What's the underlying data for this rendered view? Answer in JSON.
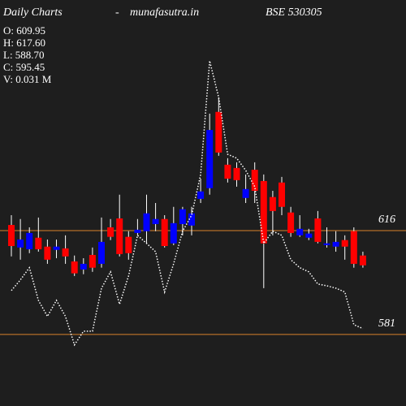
{
  "chart_data": {
    "type": "candlestick",
    "title": "Daily Charts",
    "separator": "-",
    "site": "munafasutra.in",
    "symbol": "BSE 530305",
    "info": [
      "O: 609.95",
      "H: 617.60",
      "L: 588.70",
      "C: 595.45",
      "V: 0.031 M"
    ],
    "ylim": [
      556.9,
      693.7
    ],
    "yticks": [
      581,
      616
    ],
    "tick_color": "#d9822b",
    "up_color": "#0000ff",
    "down_color": "#ff0000",
    "wick_color": "#ffffff",
    "open": [
      617.9,
      610.3,
      609.7,
      613.6,
      610.6,
      609.5,
      610.0,
      605.6,
      602.9,
      607.8,
      604.8,
      617.1,
      620.1,
      613.9,
      615.2,
      615.8,
      618.2,
      619.9,
      611.7,
      618.2,
      617.7,
      626.7,
      630.3,
      656.0,
      638.2,
      637.1,
      627.0,
      636.5,
      632.7,
      627.3,
      632.2,
      622.1,
      614.4,
      613.6,
      620.1,
      611.1,
      610.6,
      612.8,
      615.8,
      607.6
    ],
    "high": [
      621.2,
      619.9,
      617.1,
      620.4,
      613.0,
      613.0,
      614.4,
      607.6,
      606.7,
      610.3,
      620.4,
      619.9,
      628.1,
      615.8,
      619.9,
      628.1,
      625.3,
      621.2,
      624.0,
      624.0,
      624.0,
      633.5,
      655.4,
      660.9,
      640.4,
      639.0,
      634.9,
      639.0,
      634.9,
      629.4,
      634.1,
      624.0,
      621.2,
      616.6,
      622.6,
      617.1,
      615.8,
      614.4,
      617.1,
      608.9
    ],
    "low": [
      607.3,
      606.2,
      608.4,
      608.9,
      604.8,
      606.7,
      604.8,
      600.7,
      601.3,
      602.1,
      603.5,
      612.8,
      607.3,
      606.2,
      614.4,
      611.7,
      615.8,
      610.3,
      611.1,
      614.4,
      614.4,
      625.3,
      628.1,
      641.2,
      632.2,
      630.8,
      625.3,
      625.3,
      596.6,
      614.4,
      621.2,
      613.9,
      613.9,
      612.8,
      611.7,
      610.3,
      608.9,
      606.2,
      603.5,
      603.5
    ],
    "close": [
      610.8,
      613.0,
      615.2,
      609.7,
      606.2,
      610.6,
      607.3,
      601.6,
      604.8,
      603.5,
      612.2,
      613.9,
      608.1,
      608.4,
      616.3,
      621.8,
      619.9,
      610.8,
      618.5,
      623.2,
      621.8,
      629.2,
      649.9,
      642.3,
      633.5,
      633.0,
      630.0,
      629.4,
      611.7,
      622.6,
      624.0,
      615.2,
      616.6,
      615.0,
      612.2,
      611.7,
      612.2,
      610.6,
      604.8,
      604.3
    ],
    "line": {
      "color": "#ffffff",
      "values": [
        595.8,
        599.4,
        603.5,
        592.5,
        587.1,
        592.5,
        587.1,
        577.5,
        582.1,
        582.1,
        596.6,
        602.1,
        591.2,
        600.7,
        614.4,
        611.7,
        608.9,
        595.3,
        604.8,
        615.8,
        621.2,
        634.9,
        673.2,
        660.9,
        641.7,
        640.4,
        636.3,
        630.8,
        611.7,
        615.8,
        614.4,
        606.2,
        603.5,
        602.1,
        598.0,
        597.4,
        596.6,
        595.3,
        584.3,
        583.0
      ]
    }
  }
}
